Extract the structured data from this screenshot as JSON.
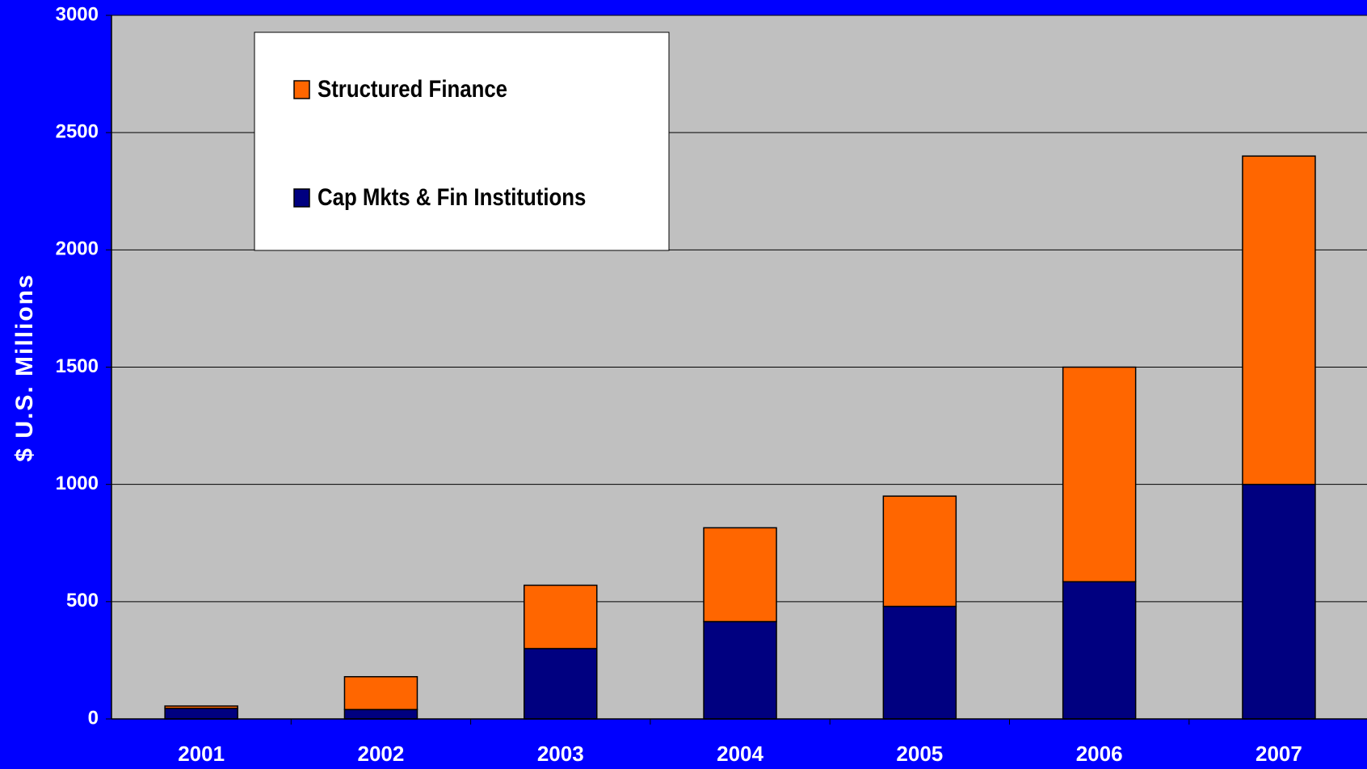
{
  "chart_data": {
    "type": "stacked_bar",
    "y_label": "$ U.S. Millions",
    "categories": [
      "2001",
      "2002",
      "2003",
      "2004",
      "2005",
      "2006",
      "2007"
    ],
    "series": [
      {
        "name": "Cap Mkts & Fin Institutions",
        "color": "#000080",
        "values": [
          45,
          40,
          300,
          415,
          480,
          585,
          1000
        ]
      },
      {
        "name": "Structured Finance",
        "color": "#ff6600",
        "values": [
          10,
          140,
          270,
          400,
          470,
          915,
          1400
        ]
      }
    ],
    "ylim": [
      0,
      3000
    ],
    "yticks": [
      0,
      500,
      1000,
      1500,
      2000,
      2500,
      3000
    ],
    "grid": true
  }
}
